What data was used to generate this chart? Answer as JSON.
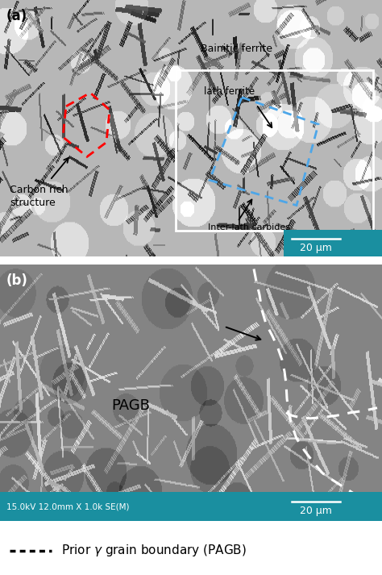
{
  "fig_width": 4.74,
  "fig_height": 7.13,
  "dpi": 100,
  "panel_a_label": "(a)",
  "panel_b_label": "(b)",
  "bainitic_ferrite": "Bainitic ferrite",
  "lath_ferrite": "lath ferrite",
  "carbon_rich": "Carbon rich\nstructure",
  "inter_lath": "Inter-lath carbides",
  "pagb_label": "PAGB",
  "scale_bar_a": "20 μm",
  "scale_bar_b": "20 μm",
  "sem_info": "15.0kV 12.0mm X 1.0k SE(M)",
  "teal_color": "#1a8fa0",
  "red_dotted": "#ff0000",
  "blue_dotted": "#4da6e8",
  "white": "#ffffff",
  "black": "#000000"
}
